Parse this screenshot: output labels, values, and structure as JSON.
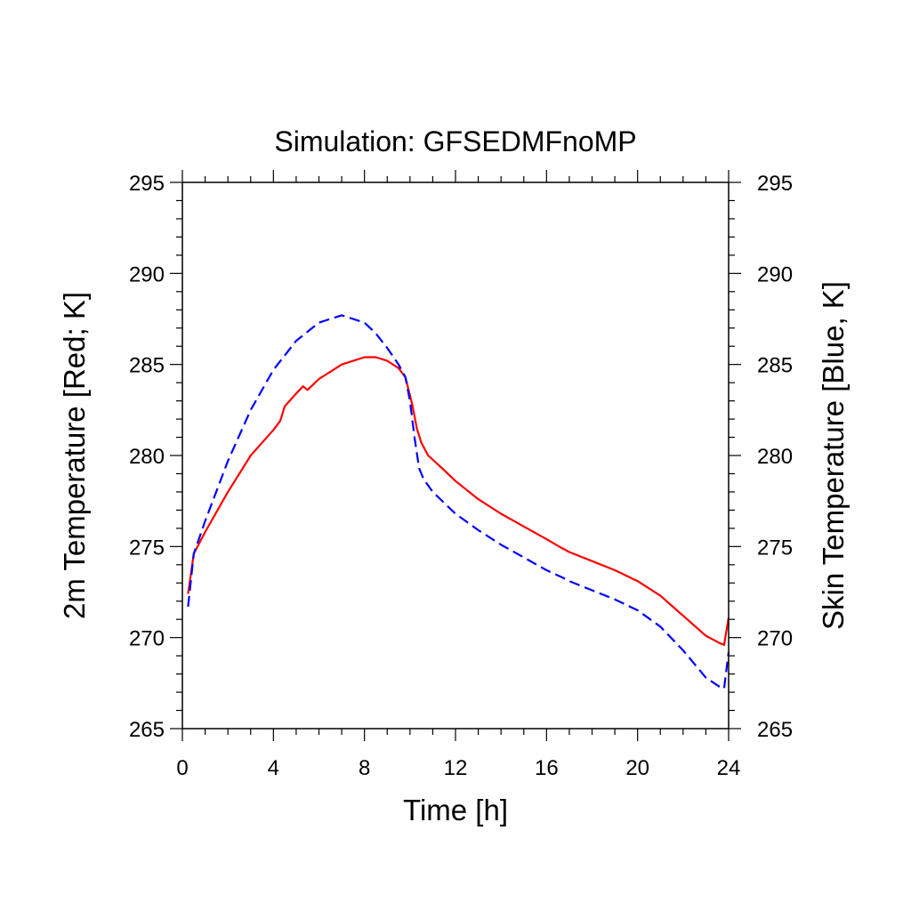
{
  "chart_data": {
    "type": "line",
    "title": "Simulation: GFSEDMFnoMP",
    "xlabel": "Time [h]",
    "ylabel": "2m Temperature [Red; K]",
    "ylabel_right": "Skin Temperature [Blue, K]",
    "xlim": [
      0,
      24
    ],
    "ylim": [
      265,
      295
    ],
    "x_major_ticks": [
      0,
      4,
      8,
      12,
      16,
      20,
      24
    ],
    "x_tick_labels": [
      "0",
      "4",
      "8",
      "12",
      "16",
      "20",
      "24"
    ],
    "y_major_ticks": [
      265,
      270,
      275,
      280,
      285,
      290,
      295
    ],
    "y_tick_labels": [
      "265",
      "270",
      "275",
      "280",
      "285",
      "290",
      "295"
    ],
    "y_right_tick_labels": [
      "265",
      "270",
      "275",
      "280",
      "285",
      "290",
      "295"
    ],
    "grid": false,
    "series": [
      {
        "color": "#ff0000",
        "line_style": "solid",
        "x": [
          0.25,
          0.5,
          1,
          2,
          3,
          4,
          4.3,
          4.5,
          5,
          5.3,
          5.5,
          6,
          7,
          8,
          8.5,
          9,
          9.5,
          9.8,
          10.1,
          10.3,
          10.5,
          10.8,
          11.5,
          12,
          13,
          14,
          15,
          16,
          16.7,
          17,
          18,
          19,
          20,
          21,
          22,
          23,
          23.6,
          23.8,
          24
        ],
        "y": [
          272.4,
          274.6,
          275.8,
          278.0,
          280.0,
          281.4,
          281.9,
          282.7,
          283.4,
          283.8,
          283.6,
          284.2,
          285.0,
          285.4,
          285.4,
          285.2,
          284.8,
          284.3,
          282.8,
          281.5,
          280.7,
          280.0,
          279.2,
          278.6,
          277.6,
          276.8,
          276.1,
          275.4,
          274.9,
          274.7,
          274.2,
          273.7,
          273.1,
          272.3,
          271.2,
          270.1,
          269.7,
          269.6,
          271.1
        ]
      },
      {
        "color": "#0000ff",
        "line_style": "dashed",
        "x": [
          0.25,
          0.5,
          1,
          2,
          3,
          4,
          5,
          6,
          7,
          8,
          8.5,
          9,
          9.5,
          9.8,
          10,
          10.2,
          10.4,
          10.6,
          11,
          12,
          13,
          14,
          15,
          16,
          16.7,
          17,
          18,
          19,
          20,
          21,
          22,
          23,
          23.6,
          23.8,
          24
        ],
        "y": [
          271.7,
          274.6,
          276.4,
          279.7,
          282.5,
          284.7,
          286.3,
          287.3,
          287.7,
          287.3,
          286.7,
          285.9,
          285.0,
          284.3,
          283.0,
          281.0,
          279.3,
          278.7,
          278.0,
          276.8,
          275.9,
          275.1,
          274.4,
          273.7,
          273.3,
          273.1,
          272.6,
          272.1,
          271.5,
          270.6,
          269.3,
          267.8,
          267.3,
          267.2,
          269.2
        ]
      }
    ]
  }
}
